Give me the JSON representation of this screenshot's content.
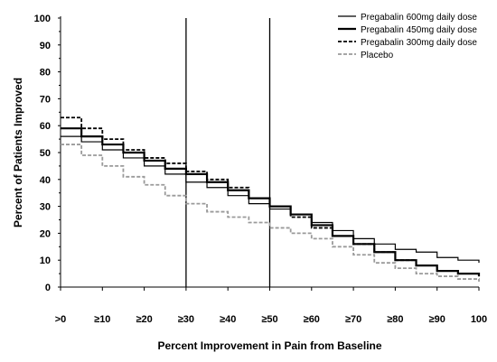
{
  "chart_data": {
    "type": "line",
    "title": "",
    "xlabel": "Percent Improvement in Pain from Baseline",
    "ylabel": "Percent of Patients Improved",
    "x_ticks": [
      ">0",
      "≥10",
      "≥20",
      "≥30",
      "≥40",
      "≥50",
      "≥60",
      "≥70",
      "≥80",
      "≥90",
      "100"
    ],
    "y_ticks": [
      "0",
      "10",
      "20",
      "30",
      "40",
      "50",
      "60",
      "70",
      "80",
      "90",
      "100"
    ],
    "xlim": [
      0,
      100
    ],
    "ylim": [
      0,
      100
    ],
    "reference_lines_x": [
      30,
      50
    ],
    "legend_position": "top-right",
    "grid": false,
    "series": [
      {
        "name": "Pregabalin 600mg daily dose",
        "color": "#000000",
        "style": "solid-thin",
        "x": [
          0,
          5,
          10,
          15,
          20,
          25,
          30,
          35,
          40,
          45,
          50,
          55,
          60,
          65,
          70,
          75,
          80,
          85,
          90,
          95,
          100
        ],
        "y": [
          56,
          54,
          51,
          48,
          45,
          42,
          39,
          37,
          34,
          31,
          29,
          27,
          24,
          21,
          18,
          16,
          14,
          13,
          11,
          10,
          9
        ]
      },
      {
        "name": "Pregabalin 450mg daily dose",
        "color": "#000000",
        "style": "solid-thick",
        "x": [
          0,
          5,
          10,
          15,
          20,
          25,
          30,
          35,
          40,
          45,
          50,
          55,
          60,
          65,
          70,
          75,
          80,
          85,
          90,
          95,
          100
        ],
        "y": [
          59,
          56,
          53,
          50,
          47,
          44,
          42,
          39,
          36,
          33,
          30,
          27,
          23,
          19,
          16,
          13,
          10,
          8,
          6,
          5,
          4
        ]
      },
      {
        "name": "Pregabalin 300mg daily dose",
        "color": "#000000",
        "style": "dashed",
        "x": [
          0,
          5,
          10,
          15,
          20,
          25,
          30,
          35,
          40,
          45,
          50,
          55,
          60,
          65,
          70,
          75,
          80,
          85,
          90,
          95,
          100
        ],
        "y": [
          63,
          59,
          55,
          51,
          48,
          46,
          43,
          40,
          37,
          33,
          30,
          26,
          22,
          19,
          16,
          13,
          10,
          8,
          6,
          5,
          4
        ]
      },
      {
        "name": "Placebo",
        "color": "#9a9a9a",
        "style": "dashed",
        "x": [
          0,
          5,
          10,
          15,
          20,
          25,
          30,
          35,
          40,
          45,
          50,
          55,
          60,
          65,
          70,
          75,
          80,
          85,
          90,
          95,
          100
        ],
        "y": [
          53,
          49,
          45,
          41,
          38,
          34,
          31,
          28,
          26,
          24,
          22,
          20,
          18,
          15,
          12,
          9,
          7,
          5,
          4,
          3,
          2
        ]
      }
    ]
  }
}
